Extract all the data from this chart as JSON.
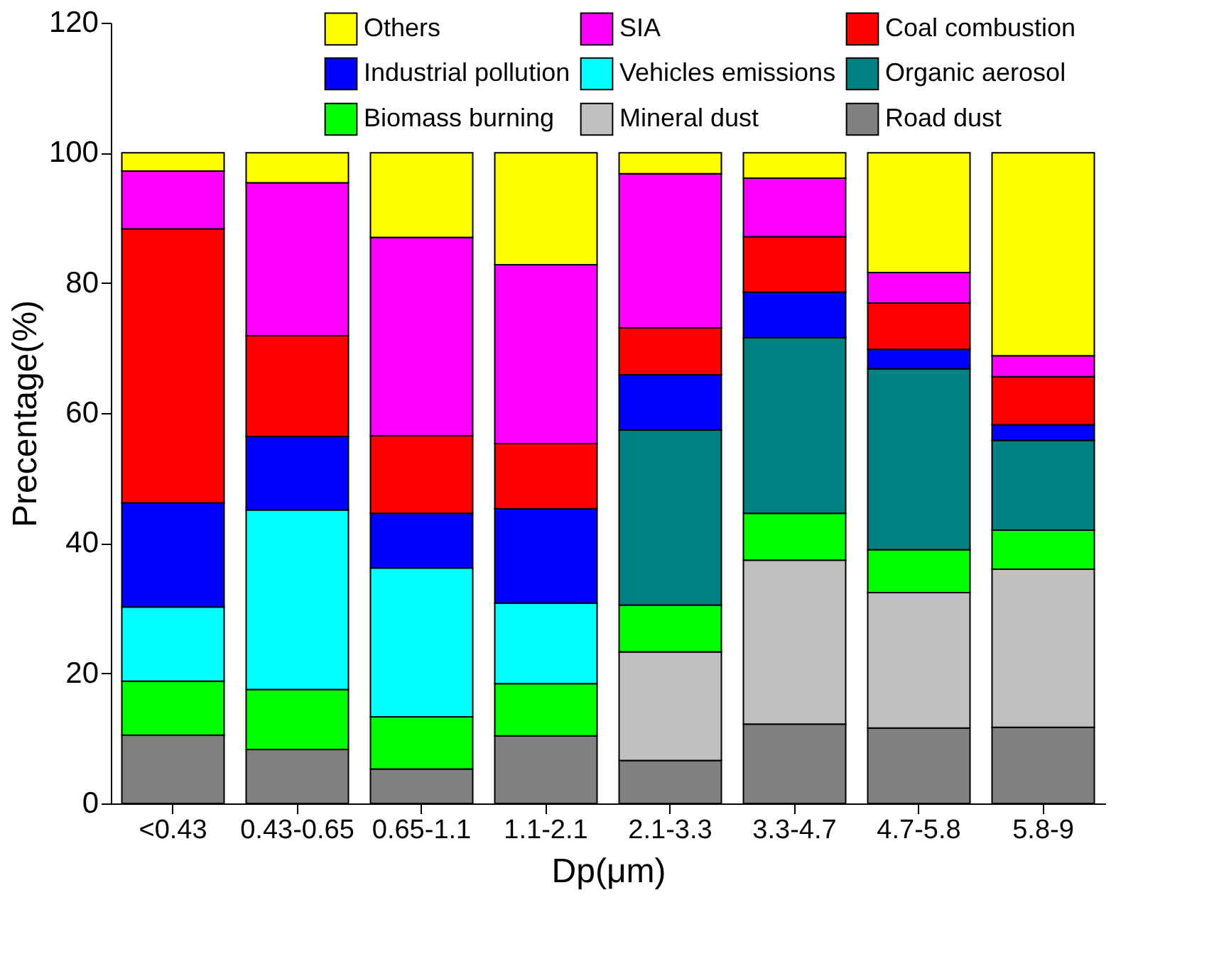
{
  "chart_data": {
    "type": "bar",
    "stacked": true,
    "xlabel": "Dp(μm)",
    "ylabel": "Precentage(%)",
    "categories": [
      "<0.43",
      "0.43-0.65",
      "0.65-1.1",
      "1.1-2.1",
      "2.1-3.3",
      "3.3-4.7",
      "4.7-5.8",
      "5.8-9"
    ],
    "series": [
      {
        "name": "Road dust",
        "color": "#808080",
        "values": [
          10.5,
          8.3,
          5.3,
          10.4,
          6.6,
          12.2,
          11.6,
          11.7
        ]
      },
      {
        "name": "Mineral dust",
        "color": "#c0c0c0",
        "values": [
          null,
          null,
          null,
          null,
          16.7,
          25.2,
          20.8,
          24.3
        ]
      },
      {
        "name": "Biomass burning",
        "color": "#00ff00",
        "values": [
          8.3,
          9.2,
          8.0,
          8.0,
          7.2,
          7.2,
          6.6,
          6.0
        ]
      },
      {
        "name": "Organic aerosol",
        "color": "#008080",
        "values": [
          null,
          null,
          null,
          null,
          26.9,
          27.0,
          27.8,
          13.8
        ]
      },
      {
        "name": "Vehicles emissions",
        "color": "#00ffff",
        "values": [
          11.4,
          27.6,
          22.9,
          12.4,
          null,
          null,
          null,
          null
        ]
      },
      {
        "name": "Industrial pollution",
        "color": "#0000ff",
        "values": [
          16.0,
          11.3,
          8.4,
          14.5,
          8.5,
          7.0,
          3.0,
          2.4
        ]
      },
      {
        "name": "Coal combustion",
        "color": "#ff0000",
        "values": [
          42.1,
          15.5,
          11.9,
          10.0,
          7.2,
          8.5,
          7.1,
          7.4
        ]
      },
      {
        "name": "SIA",
        "color": "#ff00ff",
        "values": [
          8.9,
          23.5,
          30.5,
          27.5,
          23.7,
          9.0,
          4.7,
          3.2
        ]
      },
      {
        "name": "Others",
        "color": "#ffff00",
        "values": [
          2.8,
          4.6,
          13.0,
          17.2,
          3.2,
          3.9,
          18.4,
          31.2
        ]
      }
    ],
    "ylim": [
      0,
      120
    ],
    "yticks": [
      0,
      20,
      40,
      60,
      80,
      100,
      120
    ],
    "grid": false,
    "legend": "top"
  }
}
